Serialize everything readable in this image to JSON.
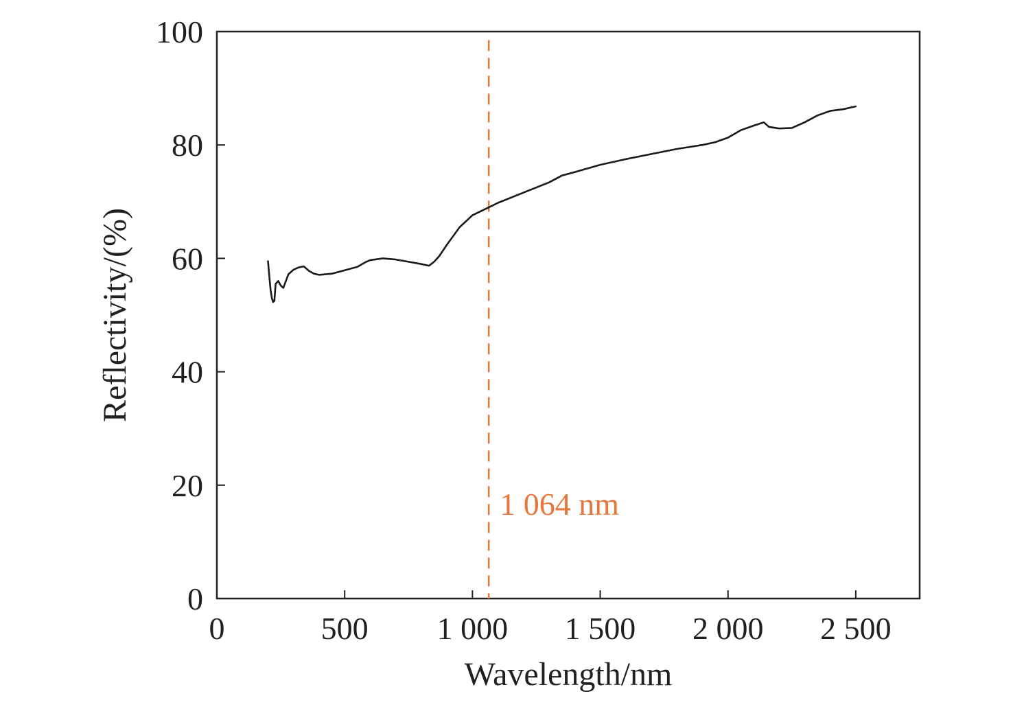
{
  "colors": {
    "axis": "#231f20",
    "series": "#1a1a1a",
    "marker": "#e8763a"
  },
  "chart_data": {
    "type": "line",
    "title": "",
    "xlabel": "Wavelength/nm",
    "ylabel": "Reflectivity/(%)",
    "xlim": [
      0,
      2750
    ],
    "ylim": [
      0,
      100
    ],
    "grid": false,
    "x_ticks": [
      0,
      500,
      1000,
      1500,
      2000,
      2500
    ],
    "x_tick_labels": [
      "0",
      "500",
      "1 000",
      "1 500",
      "2 000",
      "2 500"
    ],
    "y_ticks": [
      0,
      20,
      40,
      60,
      80,
      100
    ],
    "y_tick_labels": [
      "0",
      "20",
      "40",
      "60",
      "80",
      "100"
    ],
    "series": [
      {
        "x": [
          200,
          205,
          210,
          215,
          220,
          225,
          230,
          240,
          250,
          260,
          270,
          280,
          300,
          320,
          340,
          360,
          380,
          400,
          450,
          500,
          550,
          580,
          600,
          650,
          700,
          750,
          800,
          830,
          850,
          870,
          900,
          950,
          1000,
          1064,
          1100,
          1200,
          1300,
          1350,
          1400,
          1500,
          1600,
          1700,
          1800,
          1900,
          1950,
          2000,
          2050,
          2100,
          2140,
          2160,
          2200,
          2250,
          2300,
          2350,
          2400,
          2450,
          2500
        ],
        "y": [
          59.5,
          57.0,
          54.5,
          53.0,
          52.3,
          52.5,
          55.5,
          56.0,
          55.2,
          54.8,
          56.0,
          57.2,
          58.0,
          58.4,
          58.6,
          57.8,
          57.3,
          57.1,
          57.3,
          57.9,
          58.5,
          59.3,
          59.7,
          60.0,
          59.8,
          59.4,
          59.0,
          58.7,
          59.4,
          60.4,
          62.4,
          65.5,
          67.6,
          69.0,
          69.8,
          71.6,
          73.4,
          74.6,
          75.2,
          76.5,
          77.5,
          78.4,
          79.3,
          80.0,
          80.5,
          81.3,
          82.6,
          83.4,
          84.0,
          83.2,
          82.9,
          83.0,
          84.0,
          85.2,
          86.0,
          86.3,
          86.8
        ]
      }
    ],
    "markers": [
      {
        "x": 1064,
        "label": "1 064 nm"
      }
    ]
  }
}
